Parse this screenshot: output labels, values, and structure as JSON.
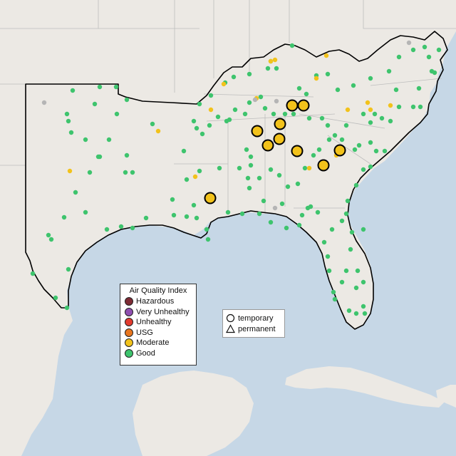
{
  "legend": {
    "title": "Air Quality Index",
    "categories": [
      {
        "label": "Hazardous",
        "color": "#7e2b34"
      },
      {
        "label": "Very Unhealthy",
        "color": "#8f4fb0"
      },
      {
        "label": "Unhealthy",
        "color": "#e23b2e"
      },
      {
        "label": "USG",
        "color": "#e8761e"
      },
      {
        "label": "Moderate",
        "color": "#f2c21b"
      },
      {
        "label": "Good",
        "color": "#3ec46d"
      }
    ]
  },
  "site_types": [
    {
      "label": "temporary",
      "shape": "circle-icon"
    },
    {
      "label": "permanent",
      "shape": "triangle-icon"
    }
  ],
  "colors": {
    "land": "#ece9e4",
    "water": "#c6d7e6",
    "border": "#000000",
    "state_line": "#bdbdbd",
    "no_data": "#b5b5b5"
  }
}
